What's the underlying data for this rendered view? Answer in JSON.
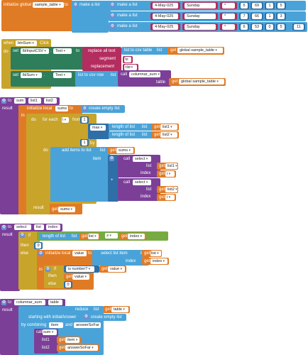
{
  "init_block": {
    "label": "initialize global",
    "var_name": "sample_table",
    "to": "to",
    "make_a_list": "make a list",
    "rows": [
      {
        "make_a_list": "make a list",
        "date": "4-May-025",
        "day": "Sunday",
        "mark": "*",
        "n1": "5",
        "n2": "69",
        "n3": "1",
        "n4": "5"
      },
      {
        "make_a_list": "make a list",
        "date": "4-May-025",
        "day": "Sunday",
        "mark": "*",
        "n1": "7",
        "n2": "66",
        "n3": "1",
        "n4": "3"
      },
      {
        "make_a_list": "make a list",
        "date": "4-May-025",
        "day": "Sunday",
        "mark": "*",
        "n1": "6",
        "n2": "53",
        "n3": "0",
        "n4": "5",
        "n5": "11"
      }
    ]
  },
  "click_block": {
    "when": "when",
    "component": "btnSum",
    "event": "Click",
    "do": "do",
    "set1": {
      "set": "set",
      "component": "lblInputCSV",
      "prop": "Text",
      "to": "to",
      "replace_all": "replace all text",
      "list_to_csv": "list to csv table",
      "list": "list",
      "get": "get",
      "var": "global sample_table",
      "segment": "segment",
      "seg_val": "\\n",
      "replacement": "replacement",
      "rep_val": "<br>"
    },
    "set2": {
      "set": "set",
      "component": "lblSum",
      "prop": "Text",
      "to": "to",
      "list_to_csv_row": "list to csv row",
      "list": "list",
      "call": "call",
      "proc": "columnar_sum",
      "table": "table",
      "get": "get",
      "var": "global sample_table"
    }
  },
  "sum_block": {
    "to": "to",
    "name": "sum",
    "p1": "list1",
    "p2": "list2",
    "result": "result",
    "init_local": "initialize local",
    "local_name": "sums",
    "local_to": "to",
    "create_empty": "create empty list",
    "in": "in",
    "do": "do",
    "for_each": "for each",
    "loop_var": "i",
    "from": "from",
    "from_val": "1",
    "to_lbl": "to",
    "max": "max",
    "length1": "length of list",
    "list_lbl1": "list",
    "get1": "get",
    "arg1": "list1",
    "length2": "length of list",
    "list_lbl2": "list",
    "get2": "get",
    "arg2": "list2",
    "by": "by",
    "by_val": "1",
    "do2": "do",
    "add_items": "add items to list",
    "list_lbl3": "list",
    "get3": "get",
    "arg3": "sums",
    "item": "item",
    "call1": "call",
    "select1": "select",
    "list_lbl4": "list",
    "get4": "get",
    "arg4": "list1",
    "index_lbl1": "index",
    "get5": "get",
    "arg5": "i",
    "plus": "+",
    "call2": "call",
    "select2": "select",
    "list_lbl5": "list",
    "get6": "get",
    "arg6": "list2",
    "index_lbl2": "index",
    "get7": "get",
    "arg7": "i",
    "result2": "result",
    "get8": "get",
    "arg8": "sums"
  },
  "select_block": {
    "to": "to",
    "name": "select",
    "p1": "list",
    "p2": "index",
    "result": "result",
    "if": "if",
    "length": "length of list",
    "list_lbl": "list",
    "get1": "get",
    "arg1": "list",
    "op": "≥",
    "get2": "get",
    "arg2": "index",
    "then": "then",
    "then_val": "0",
    "else": "else",
    "init_local": "initialize local",
    "local_name": "value",
    "local_to": "to",
    "select_item": "select list item",
    "list_lbl2": "list",
    "get3": "get",
    "arg3": "list",
    "index_lbl": "index",
    "get4": "get",
    "arg4": "index",
    "in": "in",
    "if2": "if",
    "is_number": "is number?",
    "get5": "get",
    "arg5": "value",
    "then2": "then",
    "get6": "get",
    "arg6": "value",
    "else2": "else",
    "else_val": "0"
  },
  "colsum_block": {
    "to": "to",
    "name": "columnar_sum",
    "p1": "table",
    "result": "result",
    "reduce": "reduce",
    "list_lbl": "list",
    "get1": "get",
    "arg1": "table",
    "starting": "starting with initialAnswer",
    "create_empty": "create empty list",
    "combining": "by combining",
    "item": "item",
    "and": "and",
    "answer": "answerSoFar",
    "call": "call",
    "proc": "sum",
    "list1_lbl": "list1",
    "get2": "get",
    "arg2": "item",
    "list2_lbl": "list2",
    "get3": "get",
    "arg3": "answerSoFar"
  }
}
